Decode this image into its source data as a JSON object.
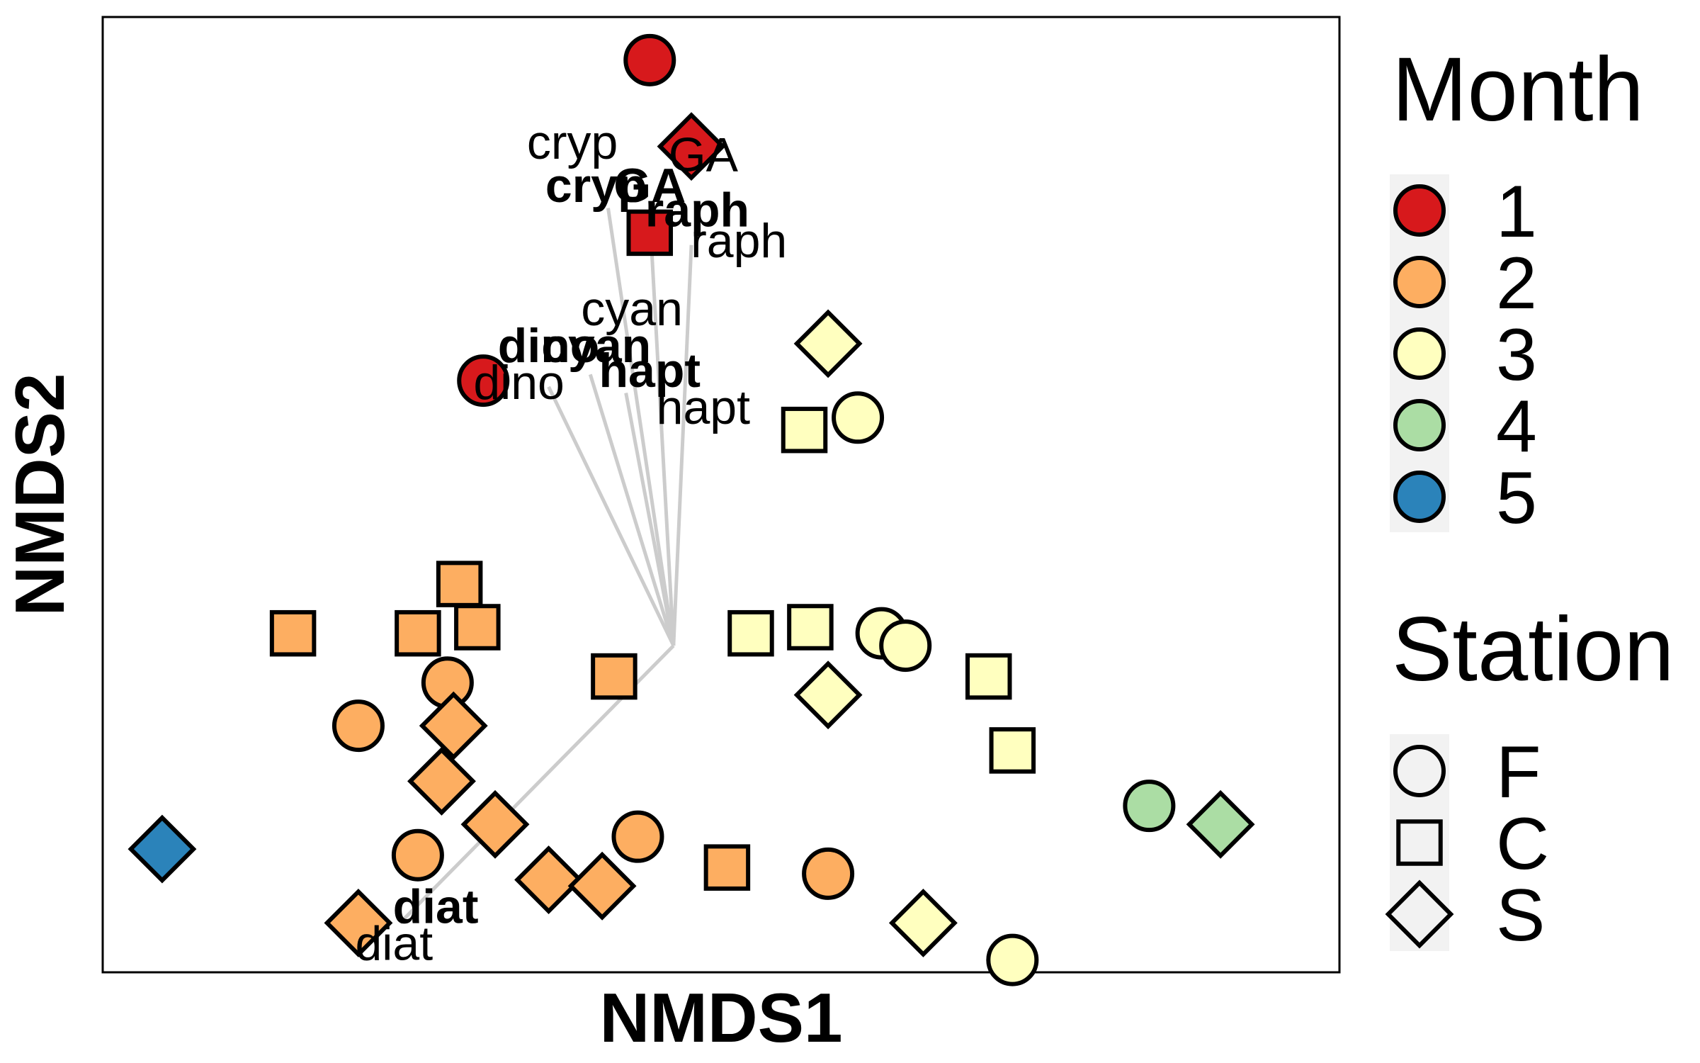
{
  "chart_data": {
    "type": "scatter",
    "title": "",
    "xlabel": "NMDS1",
    "ylabel": "NMDS2",
    "xlim": [
      -0.92,
      1.16
    ],
    "ylim": [
      -0.55,
      1.0
    ],
    "grid": false,
    "colors": {
      "1": "#d7191c",
      "2": "#fdae61",
      "3": "#ffffbf",
      "4": "#abdda4",
      "5": "#2b83ba"
    },
    "legend": {
      "placement": "right",
      "month": {
        "title": "Month",
        "entries": [
          {
            "label": "1",
            "month": 1
          },
          {
            "label": "2",
            "month": 2
          },
          {
            "label": "3",
            "month": 3
          },
          {
            "label": "4",
            "month": 4
          },
          {
            "label": "5",
            "month": 5
          }
        ]
      },
      "station": {
        "title": "Station",
        "entries": [
          {
            "label": "F",
            "shape": "circle"
          },
          {
            "label": "C",
            "shape": "square"
          },
          {
            "label": "S",
            "shape": "diamond"
          }
        ]
      }
    },
    "points": [
      {
        "x": 0.0,
        "y": 0.93,
        "month": 1,
        "station": "F"
      },
      {
        "x": 0.07,
        "y": 0.79,
        "month": 1,
        "station": "S"
      },
      {
        "x": 0.0,
        "y": 0.65,
        "month": 1,
        "station": "C"
      },
      {
        "x": -0.28,
        "y": 0.41,
        "month": 1,
        "station": "F"
      },
      {
        "x": 0.3,
        "y": 0.47,
        "month": 3,
        "station": "S"
      },
      {
        "x": 0.35,
        "y": 0.35,
        "month": 3,
        "station": "F"
      },
      {
        "x": 0.26,
        "y": 0.33,
        "month": 3,
        "station": "C"
      },
      {
        "x": -0.32,
        "y": 0.08,
        "month": 2,
        "station": "C"
      },
      {
        "x": -0.6,
        "y": 0.0,
        "month": 2,
        "station": "C"
      },
      {
        "x": -0.39,
        "y": 0.0,
        "month": 2,
        "station": "C"
      },
      {
        "x": -0.29,
        "y": 0.01,
        "month": 2,
        "station": "C"
      },
      {
        "x": 0.17,
        "y": 0.0,
        "month": 3,
        "station": "C"
      },
      {
        "x": 0.27,
        "y": 0.01,
        "month": 3,
        "station": "C"
      },
      {
        "x": 0.39,
        "y": 0.0,
        "month": 3,
        "station": "F"
      },
      {
        "x": 0.43,
        "y": -0.02,
        "month": 3,
        "station": "F"
      },
      {
        "x": 0.57,
        "y": -0.07,
        "month": 3,
        "station": "C"
      },
      {
        "x": -0.34,
        "y": -0.08,
        "month": 2,
        "station": "F"
      },
      {
        "x": -0.06,
        "y": -0.07,
        "month": 2,
        "station": "C"
      },
      {
        "x": 0.3,
        "y": -0.1,
        "month": 3,
        "station": "S"
      },
      {
        "x": -0.33,
        "y": -0.15,
        "month": 2,
        "station": "S"
      },
      {
        "x": -0.49,
        "y": -0.15,
        "month": 2,
        "station": "F"
      },
      {
        "x": 0.61,
        "y": -0.19,
        "month": 3,
        "station": "C"
      },
      {
        "x": -0.35,
        "y": -0.24,
        "month": 2,
        "station": "S"
      },
      {
        "x": -0.26,
        "y": -0.31,
        "month": 2,
        "station": "S"
      },
      {
        "x": 0.84,
        "y": -0.28,
        "month": 4,
        "station": "F"
      },
      {
        "x": 0.96,
        "y": -0.31,
        "month": 4,
        "station": "S"
      },
      {
        "x": -0.82,
        "y": -0.35,
        "month": 5,
        "station": "S"
      },
      {
        "x": -0.02,
        "y": -0.33,
        "month": 2,
        "station": "F"
      },
      {
        "x": -0.39,
        "y": -0.36,
        "month": 2,
        "station": "F"
      },
      {
        "x": 0.13,
        "y": -0.38,
        "month": 2,
        "station": "C"
      },
      {
        "x": 0.3,
        "y": -0.39,
        "month": 2,
        "station": "F"
      },
      {
        "x": -0.17,
        "y": -0.4,
        "month": 2,
        "station": "S"
      },
      {
        "x": -0.08,
        "y": -0.41,
        "month": 2,
        "station": "S"
      },
      {
        "x": 0.46,
        "y": -0.47,
        "month": 3,
        "station": "S"
      },
      {
        "x": -0.49,
        "y": -0.47,
        "month": 2,
        "station": "S"
      },
      {
        "x": 0.61,
        "y": -0.53,
        "month": 3,
        "station": "F"
      }
    ],
    "vectors": {
      "origin": [
        0.04,
        -0.02
      ],
      "items": [
        {
          "name": "cryp",
          "end": [
            -0.07,
            0.69
          ],
          "label": [
            -0.13,
            0.77
          ],
          "label_bold": [
            -0.09,
            0.7
          ]
        },
        {
          "name": "GA",
          "end": [
            0.0,
            0.68
          ],
          "label": [
            0.09,
            0.75
          ],
          "label_bold": [
            0.0,
            0.7
          ]
        },
        {
          "name": "raph",
          "end": [
            0.07,
            0.63
          ],
          "label": [
            0.15,
            0.61
          ],
          "label_bold": [
            0.08,
            0.66
          ]
        },
        {
          "name": "cyan",
          "end": [
            -0.1,
            0.42
          ],
          "label": [
            -0.03,
            0.5
          ],
          "label_bold": [
            -0.09,
            0.44
          ]
        },
        {
          "name": "dino",
          "end": [
            -0.17,
            0.4
          ],
          "label": [
            -0.22,
            0.38
          ],
          "label_bold": [
            -0.17,
            0.44
          ]
        },
        {
          "name": "hapt",
          "end": [
            -0.04,
            0.39
          ],
          "label": [
            0.09,
            0.34
          ],
          "label_bold": [
            0.0,
            0.4
          ]
        },
        {
          "name": "diat",
          "end": [
            -0.42,
            -0.47
          ],
          "label": [
            -0.43,
            -0.53
          ],
          "label_bold": [
            -0.36,
            -0.47
          ]
        }
      ]
    }
  }
}
